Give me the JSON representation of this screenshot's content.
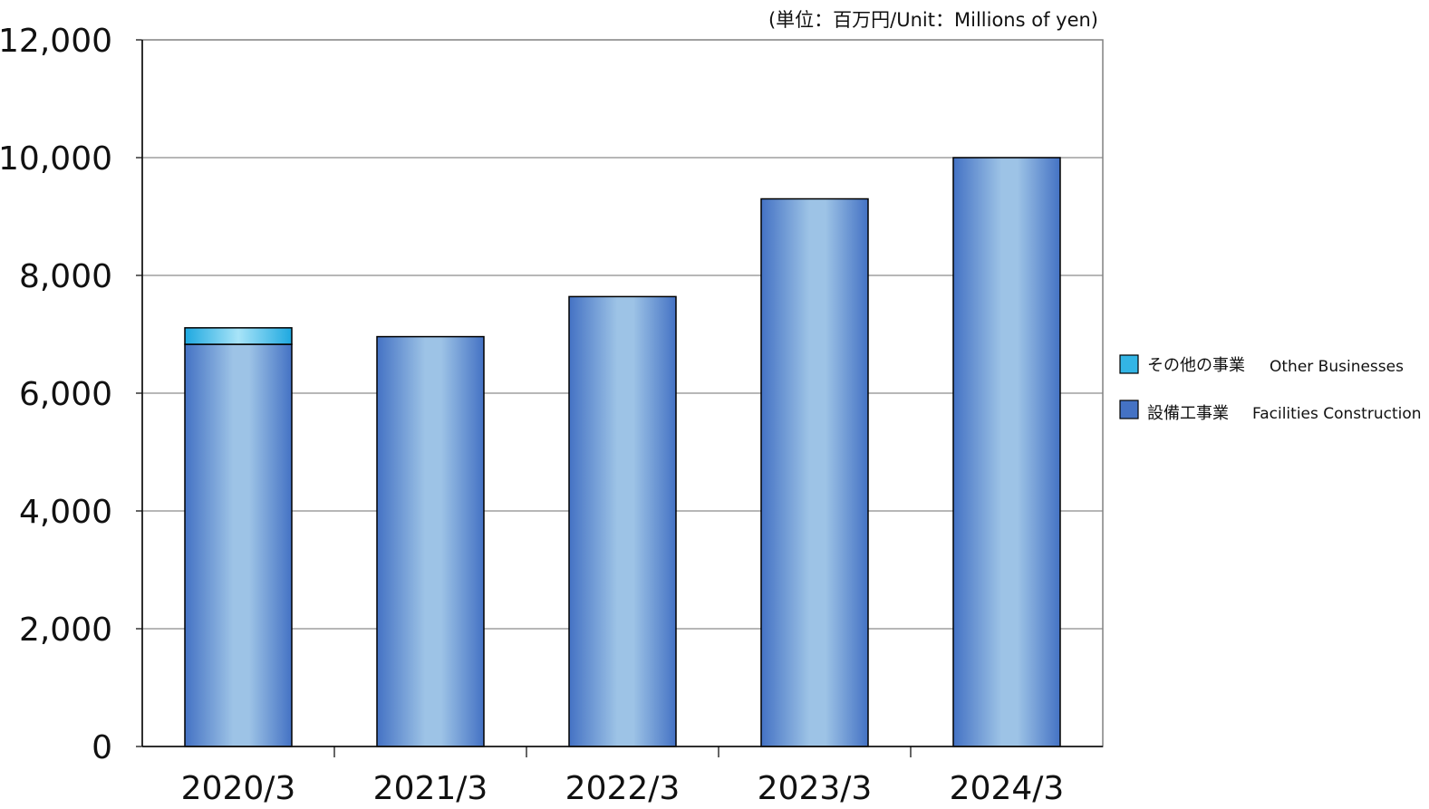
{
  "chart_data": {
    "type": "bar",
    "stacked": true,
    "unit_note": "(単位：百万円/Unit：Millions  of yen)",
    "categories": [
      "2020/3",
      "2021/3",
      "2022/3",
      "2023/3",
      "2024/3"
    ],
    "series": [
      {
        "name": "設備工事業",
        "name_en": "Facilities Construction",
        "color": "#4472C4",
        "values": [
          6830,
          6960,
          7640,
          9300,
          10000
        ]
      },
      {
        "name": "その他の事業",
        "name_en": "Other Businesses",
        "color": "#33B5E5",
        "values": [
          280,
          0,
          0,
          0,
          0
        ]
      }
    ],
    "ylim": [
      0,
      12000
    ],
    "yticks": [
      "0",
      "2,000",
      "4,000",
      "6,000",
      "8,000",
      "10,000",
      "12,000"
    ],
    "ytick_values": [
      0,
      2000,
      4000,
      6000,
      8000,
      10000,
      12000
    ],
    "grid": true,
    "legend_position": "right",
    "legend_order": [
      1,
      0
    ]
  }
}
